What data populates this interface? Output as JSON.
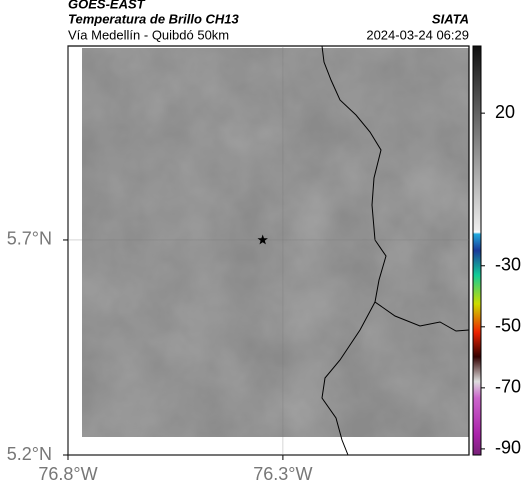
{
  "header": {
    "satellite": "GOES-EAST",
    "product": "Temperatura de Brillo CH13",
    "region": "Vía Medellín - Quibdó 50km",
    "source": "SIATA",
    "datetime": "2024-03-24 06:29"
  },
  "map": {
    "lonlim": [
      -76.8,
      -75.867
    ],
    "latlim": [
      5.2,
      6.151
    ],
    "lonticks": [
      {
        "value": -76.8,
        "label": "76.8°W"
      },
      {
        "value": -76.3,
        "label": "76.3°W"
      }
    ],
    "latticks": [
      {
        "value": 5.2,
        "label": "5.2°N"
      },
      {
        "value": 5.7,
        "label": "5.7°N"
      }
    ],
    "grid": true,
    "marker": {
      "lon": -76.347,
      "lat": 5.7
    }
  },
  "colorbar": {
    "lim": [
      -92,
      42
    ],
    "ticks": [
      20,
      -30,
      -50,
      -70,
      -90
    ]
  }
}
